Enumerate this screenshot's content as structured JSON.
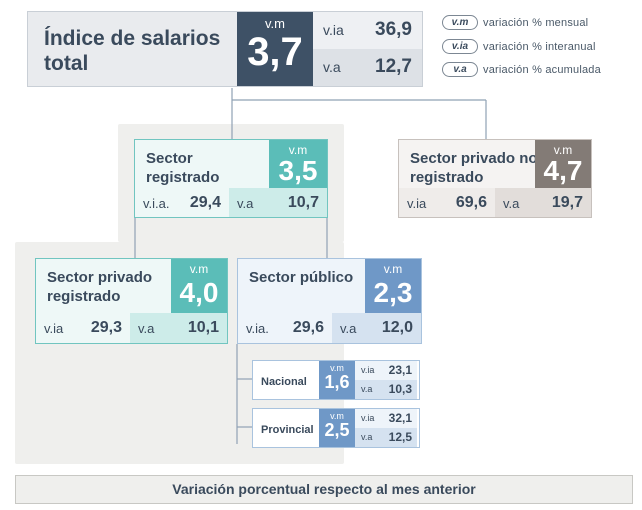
{
  "total": {
    "title": "Índice de salarios total",
    "vm_label": "v.m",
    "vm": "3,7",
    "via_label": "v.ia",
    "via": "36,9",
    "va_label": "v.a",
    "va": "12,7"
  },
  "legend": [
    {
      "abbr": "v.m",
      "text": "variación % mensual"
    },
    {
      "abbr": "v.ia",
      "text": "variación % interanual"
    },
    {
      "abbr": "v.a",
      "text": "variación % acumulada"
    }
  ],
  "registrado": {
    "title": "Sector registrado",
    "vm_label": "v.m",
    "vm": "3,5",
    "via_label": "v.i.a.",
    "via": "29,4",
    "va_label": "v.a",
    "va": "10,7"
  },
  "no_registrado": {
    "title": "Sector privado no registrado",
    "vm_label": "v.m",
    "vm": "4,7",
    "via_label": "v.ia",
    "via": "69,6",
    "va_label": "v.a",
    "va": "19,7"
  },
  "privado_registrado": {
    "title": "Sector privado registrado",
    "vm_label": "v.m",
    "vm": "4,0",
    "via_label": "v.ia",
    "via": "29,3",
    "va_label": "v.a",
    "va": "10,1"
  },
  "publico": {
    "title": "Sector público",
    "vm_label": "v.m",
    "vm": "2,3",
    "via_label": "v.ia.",
    "via": "29,6",
    "va_label": "v.a",
    "va": "12,0"
  },
  "nacional": {
    "title": "Nacional",
    "vm_label": "v.m",
    "vm": "1,6",
    "via_label": "v.ia",
    "via": "23,1",
    "va_label": "v.a",
    "va": "10,3"
  },
  "provincial": {
    "title": "Provincial",
    "vm_label": "v.m",
    "vm": "2,5",
    "via_label": "v.ia",
    "via": "32,1",
    "va_label": "v.a",
    "va": "12,5"
  },
  "footer": "Variación porcentual respecto al mes anterior",
  "colors": {
    "dark": "#3e5166",
    "teal": "#5bbdb8",
    "blue": "#6f98c7",
    "gray": "#837b76"
  }
}
